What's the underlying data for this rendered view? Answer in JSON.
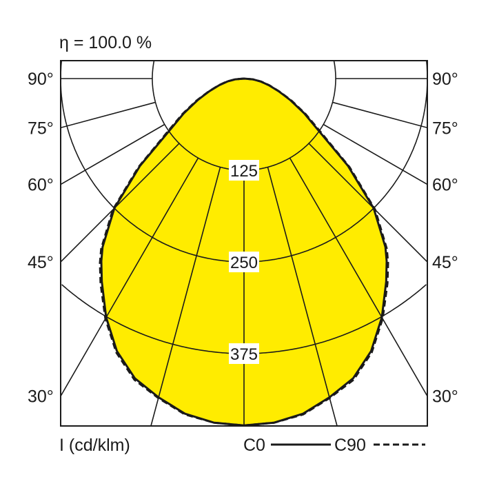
{
  "chart_data": {
    "type": "polar",
    "title": "η = 100.0 %",
    "unit_label": "I (cd/klm)",
    "radial_ticks": [
      125,
      250,
      375
    ],
    "radial_max": 475,
    "angle_ticks": [
      90,
      75,
      60,
      45,
      30
    ],
    "angle_labels": [
      "90°",
      "75°",
      "60°",
      "45°",
      "30°"
    ],
    "grid": true,
    "fill_color": "#ffec00",
    "legend_placement": "bottom-right",
    "series": [
      {
        "name": "C0",
        "style": "solid",
        "angles": [
          0,
          5,
          10,
          15,
          20,
          25,
          30,
          35,
          38,
          40,
          45,
          50,
          55,
          60,
          65,
          67,
          70,
          75,
          80,
          85,
          90
        ],
        "values": [
          473,
          471,
          464,
          450,
          435,
          410,
          376,
          338,
          316,
          300,
          250,
          185,
          125,
          95,
          70,
          61,
          50,
          35,
          23,
          12,
          0
        ]
      },
      {
        "name": "C90",
        "style": "dashed",
        "angles": [
          0,
          5,
          10,
          15,
          20,
          25,
          30,
          35,
          38,
          40,
          45,
          50,
          55,
          60,
          65,
          67,
          70,
          75,
          80,
          85,
          90
        ],
        "values": [
          473,
          471,
          465,
          451,
          437,
          412,
          378,
          341,
          319,
          303,
          253,
          188,
          128,
          97,
          72,
          62,
          51,
          36,
          24,
          12,
          0
        ]
      }
    ]
  }
}
